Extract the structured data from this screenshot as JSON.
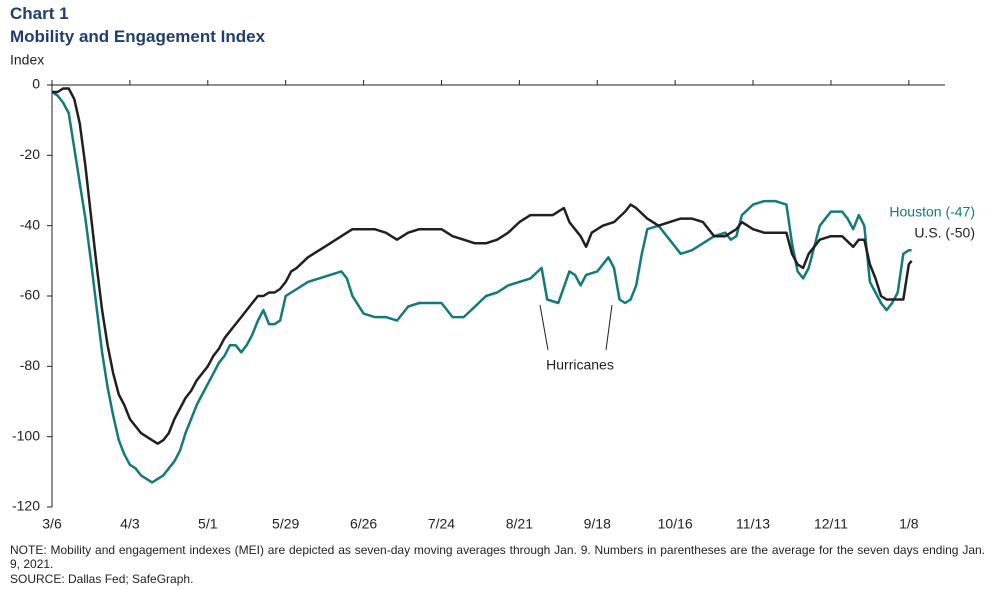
{
  "chart_data": {
    "type": "line",
    "title": "Chart 1",
    "subtitle": "Mobility and Engagement Index",
    "ylabel": "Index",
    "annotations": [
      "Hurricanes"
    ],
    "note": "NOTE: Mobility and engagement indexes (MEI) are depicted as seven-day moving averages through Jan. 9. Numbers in parentheses are the average for the seven days ending Jan. 9, 2021.",
    "source": "SOURCE: Dallas Fed; SafeGraph.",
    "xlim": [
      0,
      321
    ],
    "xticks": [
      {
        "value": 0,
        "label": "3/6"
      },
      {
        "value": 28,
        "label": "4/3"
      },
      {
        "value": 56,
        "label": "5/1"
      },
      {
        "value": 84,
        "label": "5/29"
      },
      {
        "value": 112,
        "label": "6/26"
      },
      {
        "value": 140,
        "label": "7/24"
      },
      {
        "value": 168,
        "label": "8/21"
      },
      {
        "value": 196,
        "label": "9/18"
      },
      {
        "value": 224,
        "label": "10/16"
      },
      {
        "value": 252,
        "label": "11/13"
      },
      {
        "value": 280,
        "label": "12/11"
      },
      {
        "value": 308,
        "label": "1/8"
      }
    ],
    "ylim": [
      -120,
      0
    ],
    "yticks": [
      0,
      -20,
      -40,
      -60,
      -80,
      -100,
      -120
    ],
    "series": [
      {
        "name": "Houston (-47)",
        "color": "#137a7a",
        "x": [
          0,
          2,
          4,
          6,
          8,
          10,
          12,
          14,
          16,
          18,
          20,
          22,
          24,
          26,
          28,
          30,
          32,
          34,
          36,
          38,
          40,
          42,
          44,
          46,
          48,
          50,
          52,
          54,
          56,
          58,
          60,
          62,
          64,
          66,
          68,
          70,
          72,
          74,
          76,
          78,
          80,
          82,
          84,
          86,
          88,
          92,
          96,
          100,
          104,
          106,
          108,
          112,
          116,
          120,
          124,
          128,
          132,
          136,
          140,
          144,
          148,
          152,
          156,
          160,
          164,
          168,
          172,
          176,
          178,
          182,
          186,
          188,
          190,
          192,
          196,
          200,
          202,
          204,
          206,
          208,
          210,
          212,
          214,
          218,
          222,
          226,
          230,
          234,
          238,
          242,
          244,
          246,
          248,
          252,
          256,
          260,
          264,
          266,
          268,
          270,
          272,
          276,
          280,
          284,
          286,
          288,
          290,
          292,
          294,
          296,
          298,
          300,
          302,
          304,
          306,
          308,
          309
        ],
        "values": [
          -2,
          -3,
          -5,
          -8,
          -18,
          -28,
          -38,
          -50,
          -63,
          -76,
          -86,
          -94,
          -101,
          -105,
          -108,
          -109,
          -111,
          -112,
          -113,
          -112,
          -111,
          -109,
          -107,
          -104,
          -99,
          -95,
          -91,
          -88,
          -85,
          -82,
          -79,
          -77,
          -74,
          -74,
          -76,
          -74,
          -71,
          -67,
          -64,
          -68,
          -68,
          -67,
          -60,
          -59,
          -58,
          -56,
          -55,
          -54,
          -53,
          -55,
          -60,
          -65,
          -66,
          -66,
          -67,
          -63,
          -62,
          -62,
          -62,
          -66,
          -66,
          -63,
          -60,
          -59,
          -57,
          -56,
          -55,
          -52,
          -61,
          -62,
          -53,
          -54,
          -57,
          -54,
          -53,
          -49,
          -52,
          -61,
          -62,
          -61,
          -57,
          -48,
          -41,
          -40,
          -44,
          -48,
          -47,
          -45,
          -43,
          -42,
          -44,
          -43,
          -37,
          -34,
          -33,
          -33,
          -34,
          -45,
          -53,
          -55,
          -52,
          -40,
          -36,
          -36,
          -38,
          -41,
          -37,
          -40,
          -56,
          -59,
          -62,
          -64,
          -62,
          -59,
          -48,
          -47,
          -47
        ]
      },
      {
        "name": "U.S. (-50)",
        "color": "#231f20",
        "x": [
          0,
          2,
          4,
          6,
          8,
          10,
          12,
          14,
          16,
          18,
          20,
          22,
          24,
          26,
          28,
          30,
          32,
          34,
          36,
          38,
          40,
          42,
          44,
          46,
          48,
          50,
          52,
          54,
          56,
          58,
          60,
          62,
          64,
          66,
          68,
          70,
          72,
          74,
          76,
          78,
          80,
          82,
          84,
          86,
          88,
          92,
          96,
          100,
          104,
          108,
          112,
          116,
          120,
          124,
          128,
          132,
          136,
          140,
          144,
          148,
          152,
          156,
          160,
          164,
          168,
          172,
          176,
          180,
          184,
          186,
          188,
          190,
          192,
          194,
          198,
          202,
          206,
          208,
          210,
          214,
          218,
          222,
          226,
          230,
          234,
          238,
          242,
          246,
          248,
          252,
          256,
          260,
          264,
          266,
          268,
          270,
          272,
          276,
          280,
          284,
          288,
          290,
          292,
          294,
          296,
          298,
          300,
          302,
          304,
          306,
          308,
          309
        ],
        "values": [
          -2,
          -2,
          -1,
          -1,
          -4,
          -11,
          -23,
          -37,
          -51,
          -64,
          -74,
          -82,
          -88,
          -91,
          -95,
          -97,
          -99,
          -100,
          -101,
          -102,
          -101,
          -99,
          -95,
          -92,
          -89,
          -87,
          -84,
          -82,
          -80,
          -77,
          -75,
          -72,
          -70,
          -68,
          -66,
          -64,
          -62,
          -60,
          -60,
          -59,
          -59,
          -58,
          -56,
          -53,
          -52,
          -49,
          -47,
          -45,
          -43,
          -41,
          -41,
          -41,
          -42,
          -44,
          -42,
          -41,
          -41,
          -41,
          -43,
          -44,
          -45,
          -45,
          -44,
          -42,
          -39,
          -37,
          -37,
          -37,
          -35,
          -39,
          -41,
          -43,
          -46,
          -42,
          -40,
          -39,
          -36,
          -34,
          -35,
          -38,
          -40,
          -39,
          -38,
          -38,
          -39,
          -43,
          -43,
          -41,
          -39,
          -41,
          -42,
          -42,
          -42,
          -48,
          -51,
          -52,
          -48,
          -44,
          -43,
          -43,
          -46,
          -44,
          -44,
          -51,
          -55,
          -60,
          -61,
          -61,
          -61,
          -61,
          -51,
          -50
        ]
      }
    ]
  }
}
